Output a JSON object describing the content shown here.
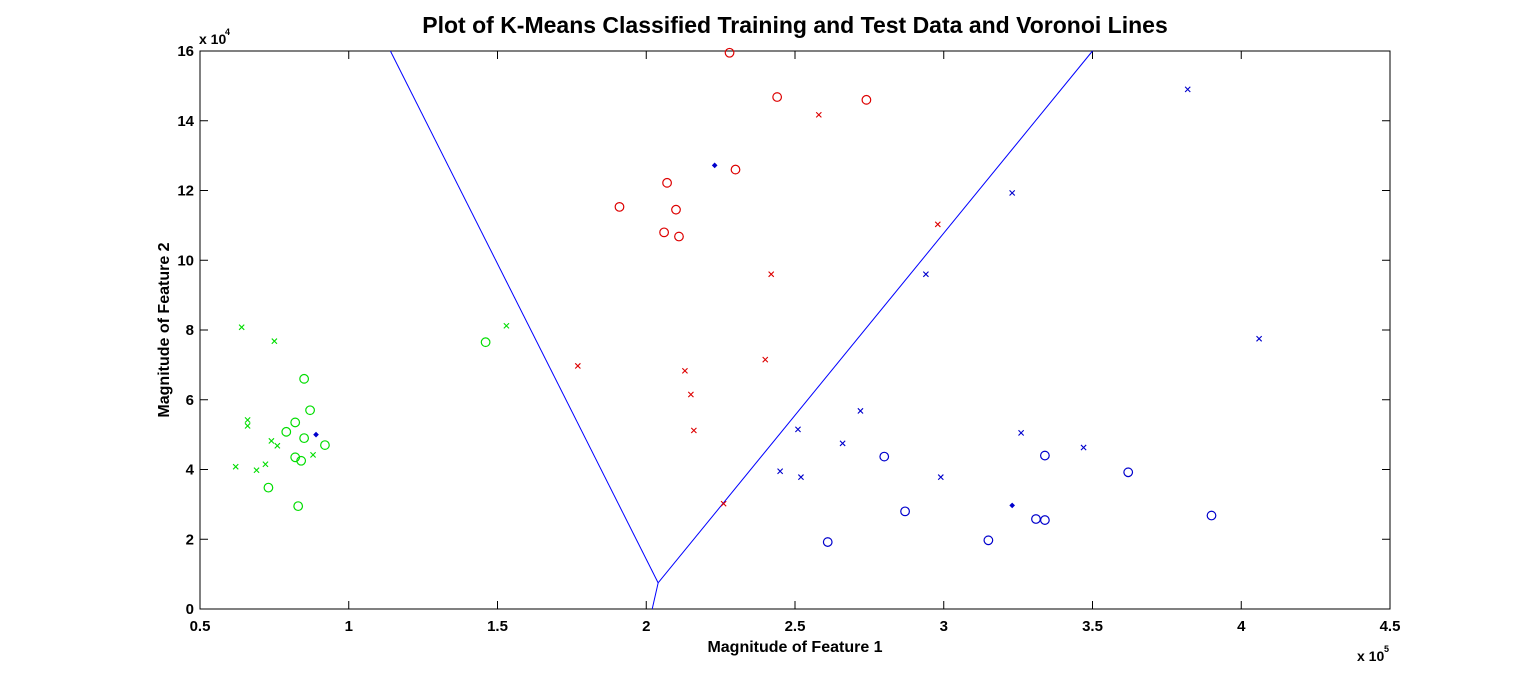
{
  "chart_data": {
    "type": "scatter",
    "title": "Plot of K-Means Classified Training and Test Data and Voronoi Lines",
    "xlabel": "Magnitude of Feature 1",
    "ylabel": "Magnitude of Feature 2",
    "x_multiplier_label": "x 10",
    "x_multiplier_exp": "5",
    "y_multiplier_label": "x 10",
    "y_multiplier_exp": "4",
    "xlim": [
      0.5,
      4.5
    ],
    "ylim": [
      0,
      16
    ],
    "xticks": [
      0.5,
      1,
      1.5,
      2,
      2.5,
      3,
      3.5,
      4,
      4.5
    ],
    "xtick_labels": [
      "0.5",
      "1",
      "1.5",
      "2",
      "2.5",
      "3",
      "3.5",
      "4",
      "4.5"
    ],
    "yticks": [
      0,
      2,
      4,
      6,
      8,
      10,
      12,
      14,
      16
    ],
    "ytick_labels": [
      "0",
      "2",
      "4",
      "6",
      "8",
      "10",
      "12",
      "14",
      "16"
    ],
    "grid": false,
    "colors": {
      "green": "#00dd00",
      "red": "#dd0000",
      "blue": "#0000cc",
      "line": "#0000ff"
    },
    "series": [
      {
        "color": "green",
        "marker": "circle",
        "points": [
          [
            1.46,
            7.65
          ],
          [
            0.85,
            6.6
          ],
          [
            0.87,
            5.7
          ],
          [
            0.82,
            5.35
          ],
          [
            0.79,
            5.08
          ],
          [
            0.85,
            4.9
          ],
          [
            0.92,
            4.7
          ],
          [
            0.82,
            4.35
          ],
          [
            0.84,
            4.25
          ],
          [
            0.73,
            3.48
          ],
          [
            0.83,
            2.95
          ]
        ]
      },
      {
        "color": "green",
        "marker": "x",
        "points": [
          [
            0.64,
            8.08
          ],
          [
            0.75,
            7.68
          ],
          [
            1.53,
            8.12
          ],
          [
            0.66,
            5.42
          ],
          [
            0.66,
            5.25
          ],
          [
            0.74,
            4.82
          ],
          [
            0.76,
            4.68
          ],
          [
            0.88,
            4.42
          ],
          [
            0.72,
            4.15
          ],
          [
            0.62,
            4.08
          ],
          [
            0.69,
            3.98
          ]
        ]
      },
      {
        "color": "red",
        "marker": "circle",
        "points": [
          [
            2.28,
            15.95
          ],
          [
            2.44,
            14.68
          ],
          [
            2.74,
            14.6
          ],
          [
            2.07,
            12.22
          ],
          [
            2.3,
            12.6
          ],
          [
            1.91,
            11.53
          ],
          [
            2.1,
            11.45
          ],
          [
            2.06,
            10.8
          ],
          [
            2.11,
            10.68
          ]
        ]
      },
      {
        "color": "red",
        "marker": "x",
        "points": [
          [
            2.58,
            14.17
          ],
          [
            2.98,
            11.03
          ],
          [
            2.42,
            9.6
          ],
          [
            1.77,
            6.97
          ],
          [
            2.4,
            7.15
          ],
          [
            2.13,
            6.83
          ],
          [
            2.15,
            6.15
          ],
          [
            2.16,
            5.12
          ],
          [
            2.26,
            3.02
          ]
        ]
      },
      {
        "color": "blue",
        "marker": "circle",
        "points": [
          [
            2.8,
            4.37
          ],
          [
            3.34,
            4.4
          ],
          [
            3.62,
            3.92
          ],
          [
            2.87,
            2.8
          ],
          [
            3.31,
            2.58
          ],
          [
            3.34,
            2.55
          ],
          [
            3.9,
            2.68
          ],
          [
            2.61,
            1.92
          ],
          [
            3.15,
            1.97
          ]
        ]
      },
      {
        "color": "blue",
        "marker": "x",
        "points": [
          [
            3.82,
            14.9
          ],
          [
            3.23,
            11.93
          ],
          [
            2.94,
            9.6
          ],
          [
            4.06,
            7.75
          ],
          [
            2.72,
            5.68
          ],
          [
            2.51,
            5.15
          ],
          [
            3.26,
            5.05
          ],
          [
            2.66,
            4.75
          ],
          [
            3.47,
            4.63
          ],
          [
            2.45,
            3.95
          ],
          [
            2.52,
            3.78
          ],
          [
            2.99,
            3.78
          ]
        ]
      },
      {
        "color": "blue",
        "marker": "centroid",
        "points": [
          [
            2.23,
            12.72
          ],
          [
            0.89,
            5.0
          ],
          [
            3.23,
            2.97
          ]
        ]
      }
    ],
    "voronoi_lines": [
      [
        [
          1.14,
          16.0
        ],
        [
          2.04,
          0.75
        ]
      ],
      [
        [
          2.04,
          0.75
        ],
        [
          3.5,
          16.0
        ]
      ],
      [
        [
          2.04,
          0.75
        ],
        [
          2.02,
          0.0
        ]
      ]
    ]
  }
}
